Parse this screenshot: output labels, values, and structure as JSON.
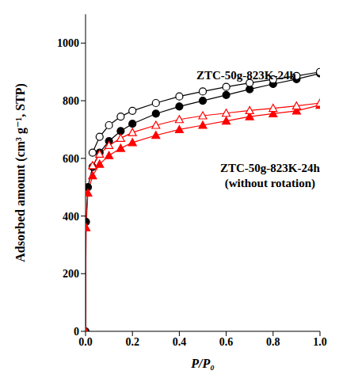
{
  "chart_data": {
    "type": "line",
    "x_label": "P/P₀",
    "y_label": "Adsorbed amount (cm³ g⁻¹, STP)",
    "x": [
      0,
      0.002,
      0.01,
      0.03,
      0.06,
      0.1,
      0.15,
      0.2,
      0.3,
      0.4,
      0.5,
      0.6,
      0.7,
      0.8,
      0.9,
      1.0
    ],
    "xlim": [
      0,
      1
    ],
    "xticks": [
      {
        "value": 0,
        "label": "0.0"
      },
      {
        "value": 0.2,
        "label": "0.2"
      },
      {
        "value": 0.4,
        "label": "0.4"
      },
      {
        "value": 0.6,
        "label": "0.6"
      },
      {
        "value": 0.8,
        "label": "0.8"
      },
      {
        "value": 1,
        "label": "1.0"
      }
    ],
    "ylim": [
      0,
      1100
    ],
    "yticks": [
      0,
      200,
      400,
      600,
      800,
      1000
    ],
    "grid": false,
    "series": [
      {
        "color": "#000000",
        "marker": "filled_circle",
        "values": [
          0,
          380,
          500,
          570,
          620,
          660,
          695,
          720,
          755,
          780,
          800,
          820,
          840,
          858,
          875,
          895
        ]
      },
      {
        "color": "#000000",
        "marker": "open_circle",
        "values": [
          null,
          null,
          null,
          620,
          675,
          715,
          745,
          765,
          792,
          815,
          832,
          848,
          862,
          874,
          886,
          900
        ]
      },
      {
        "color": "#ff0000",
        "marker": "filled_triangle",
        "values": [
          0,
          360,
          480,
          540,
          580,
          610,
          635,
          655,
          680,
          700,
          715,
          730,
          745,
          755,
          765,
          785
        ]
      },
      {
        "color": "#ff0000",
        "marker": "open_triangle",
        "values": [
          null,
          null,
          null,
          575,
          615,
          645,
          670,
          690,
          715,
          735,
          748,
          757,
          766,
          774,
          782,
          792
        ]
      }
    ],
    "annotations": [
      {
        "text": [
          "ZTC-50g-823K-24h"
        ]
      },
      {
        "text": [
          "ZTC-50g-823K-24h",
          "(without rotation)"
        ]
      }
    ]
  }
}
